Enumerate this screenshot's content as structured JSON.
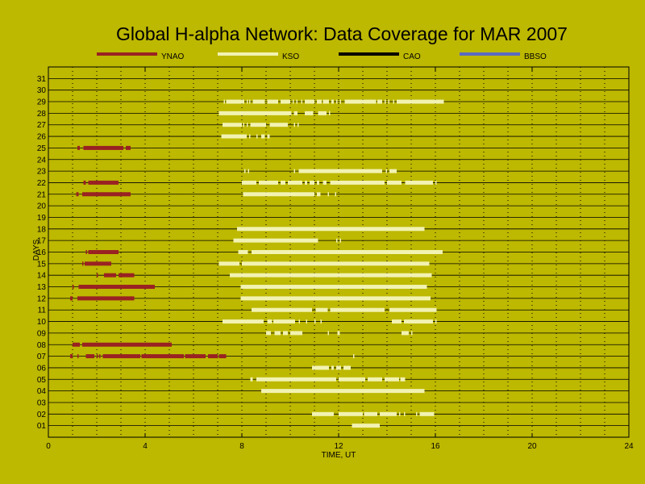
{
  "chart_data": {
    "type": "timeline",
    "title": "Global H-alpha Network: Data Coverage for MAR 2007",
    "xlabel": "TIME, UT",
    "ylabel": "DAYS",
    "xlim": [
      0,
      24
    ],
    "xticks": [
      0,
      4,
      8,
      12,
      16,
      20,
      24
    ],
    "ylim": [
      0.5,
      31.5
    ],
    "days": [
      "01",
      "02",
      "03",
      "04",
      "05",
      "06",
      "07",
      "08",
      "09",
      "10",
      "11",
      "12",
      "13",
      "14",
      "15",
      "16",
      "17",
      "18",
      "19",
      "20",
      "21",
      "22",
      "23",
      "24",
      "25",
      "26",
      "27",
      "28",
      "29",
      "30",
      "31"
    ],
    "grid": true,
    "legend_placement": "top",
    "series": [
      {
        "name": "YNAO",
        "color": "#992222",
        "coverage": {
          "07": [
            [
              0.9,
              1.0
            ],
            [
              1.2,
              1.25
            ],
            [
              1.55,
              1.9
            ],
            [
              2.0,
              2.05
            ],
            [
              2.1,
              2.15
            ],
            [
              2.25,
              3.8
            ],
            [
              3.85,
              5.6
            ],
            [
              5.65,
              6.5
            ],
            [
              6.6,
              7.0
            ],
            [
              7.05,
              7.35
            ]
          ],
          "08": [
            [
              1.0,
              1.3
            ],
            [
              1.4,
              5.1
            ]
          ],
          "12": [
            [
              0.9,
              1.0
            ],
            [
              1.2,
              3.55
            ]
          ],
          "13": [
            [
              1.0,
              1.05
            ],
            [
              1.25,
              4.4
            ]
          ],
          "14": [
            [
              2.0,
              2.05
            ],
            [
              2.3,
              2.8
            ],
            [
              2.9,
              3.55
            ]
          ],
          "15": [
            [
              1.4,
              1.45
            ],
            [
              1.5,
              2.6
            ]
          ],
          "16": [
            [
              1.55,
              1.6
            ],
            [
              1.65,
              2.9
            ]
          ],
          "21": [
            [
              1.15,
              1.25
            ],
            [
              1.4,
              3.4
            ]
          ],
          "22": [
            [
              1.45,
              1.55
            ],
            [
              1.65,
              2.9
            ]
          ],
          "25": [
            [
              1.2,
              1.3
            ],
            [
              1.45,
              3.1
            ],
            [
              3.2,
              3.4
            ]
          ]
        }
      },
      {
        "name": "KSO",
        "color": "#f2f2b2",
        "coverage": {
          "01": [
            [
              12.55,
              13.7
            ]
          ],
          "02": [
            [
              10.9,
              11.8
            ],
            [
              12.0,
              13.0
            ],
            [
              13.05,
              13.6
            ],
            [
              13.7,
              14.4
            ],
            [
              14.5,
              14.55
            ],
            [
              14.7,
              14.75
            ],
            [
              15.2,
              15.25
            ],
            [
              15.35,
              15.95
            ]
          ],
          "04": [
            [
              8.8,
              15.55
            ]
          ],
          "05": [
            [
              8.35,
              8.45
            ],
            [
              8.6,
              11.9
            ],
            [
              12.0,
              13.1
            ],
            [
              13.2,
              13.8
            ],
            [
              13.9,
              14.5
            ],
            [
              14.55,
              14.75
            ]
          ],
          "06": [
            [
              10.9,
              11.6
            ],
            [
              11.7,
              11.8
            ],
            [
              11.9,
              12.1
            ],
            [
              12.2,
              12.5
            ]
          ],
          "07": [
            [
              12.6,
              12.65
            ]
          ],
          "09": [
            [
              9.0,
              9.2
            ],
            [
              9.35,
              9.6
            ],
            [
              9.7,
              9.9
            ],
            [
              10.0,
              10.5
            ],
            [
              11.55,
              11.6
            ],
            [
              11.95,
              12.05
            ],
            [
              14.6,
              14.9
            ],
            [
              15.0,
              15.05
            ]
          ],
          "10": [
            [
              7.2,
              8.9
            ],
            [
              9.05,
              9.25
            ],
            [
              9.3,
              10.2
            ],
            [
              10.35,
              10.4
            ],
            [
              10.65,
              10.7
            ],
            [
              11.0,
              11.05
            ],
            [
              11.25,
              11.3
            ],
            [
              14.2,
              14.6
            ],
            [
              14.7,
              15.9
            ],
            [
              16.0,
              16.05
            ]
          ],
          "11": [
            [
              8.4,
              10.9
            ],
            [
              11.05,
              11.55
            ],
            [
              11.65,
              13.9
            ],
            [
              14.1,
              16.05
            ]
          ],
          "12": [
            [
              7.95,
              15.8
            ]
          ],
          "13": [
            [
              7.95,
              15.65
            ]
          ],
          "14": [
            [
              7.5,
              15.85
            ]
          ],
          "15": [
            [
              7.05,
              7.9
            ],
            [
              8.0,
              15.75
            ]
          ],
          "16": [
            [
              7.85,
              8.25
            ],
            [
              8.4,
              16.3
            ]
          ],
          "17": [
            [
              7.65,
              11.15
            ],
            [
              11.9,
              11.95
            ],
            [
              12.05,
              12.1
            ]
          ],
          "18": [
            [
              7.8,
              15.55
            ]
          ],
          "21": [
            [
              8.05,
              11.0
            ],
            [
              11.1,
              11.25
            ],
            [
              11.55,
              11.6
            ],
            [
              11.85,
              11.9
            ]
          ],
          "22": [
            [
              8.0,
              8.6
            ],
            [
              8.7,
              9.5
            ],
            [
              9.6,
              9.8
            ],
            [
              9.9,
              10.5
            ],
            [
              10.6,
              10.7
            ],
            [
              10.8,
              11.0
            ],
            [
              11.1,
              11.2
            ],
            [
              11.35,
              11.5
            ],
            [
              11.65,
              13.9
            ],
            [
              14.0,
              14.6
            ],
            [
              14.75,
              15.9
            ],
            [
              16.0,
              16.05
            ]
          ],
          "23": [
            [
              8.1,
              8.15
            ],
            [
              8.25,
              8.3
            ],
            [
              10.15,
              10.2
            ],
            [
              10.35,
              13.8
            ],
            [
              13.95,
              14.0
            ],
            [
              14.1,
              14.4
            ]
          ],
          "26": [
            [
              7.15,
              8.2
            ],
            [
              8.3,
              8.35
            ],
            [
              8.6,
              8.65
            ],
            [
              8.8,
              8.95
            ],
            [
              9.05,
              9.15
            ]
          ],
          "27": [
            [
              7.2,
              8.0
            ],
            [
              8.05,
              8.1
            ],
            [
              8.2,
              8.25
            ],
            [
              8.35,
              9.0
            ],
            [
              9.15,
              9.9
            ],
            [
              10.15,
              10.2
            ],
            [
              10.3,
              10.35
            ]
          ],
          "28": [
            [
              7.05,
              10.05
            ],
            [
              10.15,
              10.3
            ],
            [
              10.6,
              10.95
            ],
            [
              11.15,
              11.5
            ],
            [
              11.6,
              11.65
            ]
          ],
          "29": [
            [
              7.25,
              7.3
            ],
            [
              7.35,
              8.1
            ],
            [
              8.2,
              8.25
            ],
            [
              8.3,
              8.35
            ],
            [
              8.45,
              8.95
            ],
            [
              9.05,
              9.5
            ],
            [
              9.6,
              10.0
            ],
            [
              10.1,
              10.15
            ],
            [
              10.25,
              10.3
            ],
            [
              10.45,
              10.5
            ],
            [
              10.6,
              11.0
            ],
            [
              11.1,
              11.3
            ],
            [
              11.35,
              11.6
            ],
            [
              11.7,
              11.8
            ],
            [
              11.9,
              11.95
            ],
            [
              12.05,
              12.1
            ],
            [
              12.25,
              13.55
            ],
            [
              13.6,
              13.8
            ],
            [
              13.9,
              13.95
            ],
            [
              14.05,
              14.1
            ],
            [
              14.25,
              14.3
            ],
            [
              14.4,
              16.35
            ]
          ]
        }
      },
      {
        "name": "CAO",
        "color": "#000000",
        "coverage": {}
      },
      {
        "name": "BBSO",
        "color": "#5a6ac0",
        "coverage": {}
      }
    ]
  }
}
